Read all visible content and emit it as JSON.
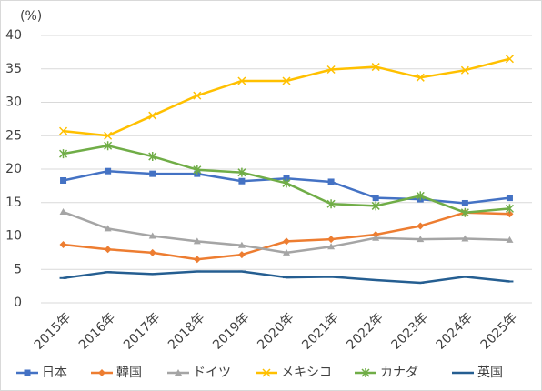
{
  "chart_data": {
    "type": "line",
    "ylabel": "(%)",
    "categories": [
      "2015年",
      "2016年",
      "2017年",
      "2018年",
      "2019年",
      "2020年",
      "2021年",
      "2022年",
      "2023年",
      "2024年",
      "2025年"
    ],
    "series": [
      {
        "name": "日本",
        "color": "#4472c4",
        "marker": "square",
        "values": [
          18.3,
          19.7,
          19.3,
          19.3,
          18.2,
          18.6,
          18.1,
          15.7,
          15.5,
          14.9,
          15.7
        ]
      },
      {
        "name": "韓国",
        "color": "#ed7d31",
        "marker": "diamond",
        "values": [
          8.7,
          8.0,
          7.5,
          6.5,
          7.2,
          9.2,
          9.5,
          10.2,
          11.5,
          13.5,
          13.3
        ]
      },
      {
        "name": "ドイツ",
        "color": "#a5a5a5",
        "marker": "triangle",
        "values": [
          13.6,
          11.1,
          10.0,
          9.2,
          8.6,
          7.5,
          8.4,
          9.7,
          9.5,
          9.6,
          9.4
        ]
      },
      {
        "name": "メキシコ",
        "color": "#ffc000",
        "marker": "x",
        "values": [
          25.7,
          25.0,
          28.0,
          31.0,
          33.2,
          33.2,
          34.9,
          35.3,
          33.7,
          34.8,
          36.5
        ]
      },
      {
        "name": "カナダ",
        "color": "#70ad47",
        "marker": "star",
        "values": [
          22.3,
          23.5,
          21.9,
          19.9,
          19.5,
          17.9,
          14.8,
          14.5,
          16.0,
          13.5,
          14.1
        ]
      },
      {
        "name": "英国",
        "color": "#255e91",
        "marker": "dash",
        "values": [
          3.7,
          4.6,
          4.3,
          4.7,
          4.7,
          3.8,
          3.9,
          3.4,
          3.0,
          3.9,
          3.2
        ]
      }
    ],
    "ylim": [
      0,
      40
    ],
    "yticks": [
      0,
      5,
      10,
      15,
      20,
      25,
      30,
      35,
      40
    ],
    "grid": true,
    "legend": "bottom"
  }
}
